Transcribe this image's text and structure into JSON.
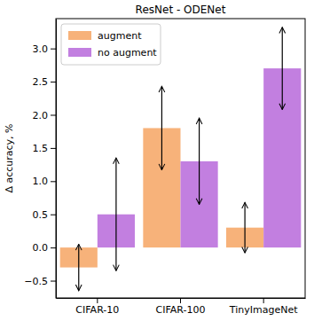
{
  "chart_data": {
    "type": "bar",
    "title": "ResNet - ODENet",
    "y_label": "Δ accuracy, %",
    "categories": [
      "CIFAR-10",
      "CIFAR-100",
      "TinyImageNet"
    ],
    "series": [
      {
        "name": "augment",
        "color": "#f7b27a",
        "values": [
          -0.3,
          1.8,
          0.3
        ],
        "errors": [
          0.35,
          0.63,
          0.38
        ]
      },
      {
        "name": "no augment",
        "color": "#c27fe0",
        "values": [
          0.5,
          1.3,
          2.7
        ],
        "errors": [
          0.85,
          0.65,
          0.62
        ]
      }
    ],
    "ylim": [
      -0.76,
      3.45
    ],
    "yticks": [
      {
        "value": -0.5,
        "label": "−0.5"
      },
      {
        "value": 0,
        "label": "0.0"
      },
      {
        "value": 0.5,
        "label": "0.5"
      },
      {
        "value": 1,
        "label": "1.0"
      },
      {
        "value": 1.5,
        "label": "1.5"
      },
      {
        "value": 2,
        "label": "2.0"
      },
      {
        "value": 2.5,
        "label": "2.5"
      },
      {
        "value": 3,
        "label": "3.0"
      }
    ],
    "grid": false,
    "legend": "upper left"
  }
}
